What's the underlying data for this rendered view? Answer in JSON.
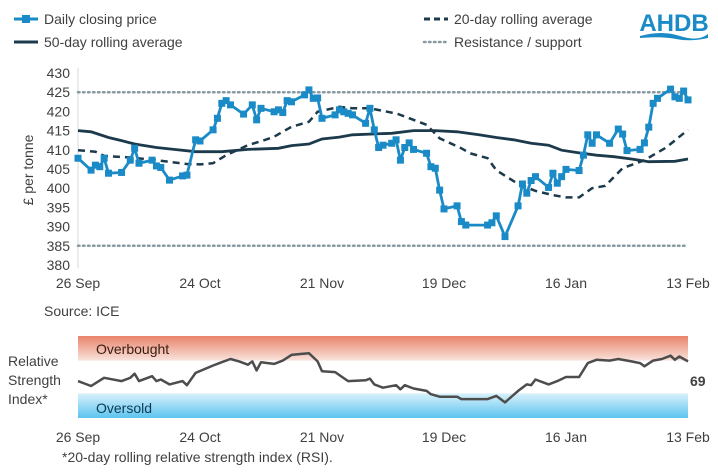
{
  "logo": {
    "text": "AHDB",
    "color": "#1a8bc6"
  },
  "colors": {
    "price": "#1a8bc6",
    "avg20": "#1c3a4c",
    "avg50": "#1c3a4c",
    "levels": "#8a9aa3",
    "overbought": "#e8836a",
    "oversold": "#5cc4ef",
    "rsi": "#4d4d4d"
  },
  "chart_data": [
    {
      "type": "line",
      "ylabel": "£ per tonne",
      "ylim": [
        380,
        430
      ],
      "yticks": [
        "430",
        "425",
        "420",
        "415",
        "410",
        "405",
        "400",
        "395",
        "390",
        "385",
        "380"
      ],
      "xticks": [
        "26 Sep",
        "24 Oct",
        "21 Nov",
        "19 Dec",
        "16 Jan",
        "13 Feb"
      ],
      "legend": "top",
      "source": "Source: ICE",
      "series": [
        {
          "name": "Daily closing price",
          "style": "line-square-markers",
          "points": [
            [
              "26 Sep",
              407.8
            ],
            [
              "29 Sep",
              404.7
            ],
            [
              "30 Sep",
              406.0
            ],
            [
              "1 Oct",
              405.6
            ],
            [
              "2 Oct",
              407.8
            ],
            [
              "3 Oct",
              403.9
            ],
            [
              "6 Oct",
              404.1
            ],
            [
              "8 Oct",
              407.3
            ],
            [
              "9 Oct",
              410.4
            ],
            [
              "10 Oct",
              406.5
            ],
            [
              "13 Oct",
              407.3
            ],
            [
              "14 Oct",
              405.8
            ],
            [
              "15 Oct",
              405.4
            ],
            [
              "17 Oct",
              402.1
            ],
            [
              "20 Oct",
              403.2
            ],
            [
              "21 Oct",
              403.4
            ],
            [
              "23 Oct",
              412.6
            ],
            [
              "24 Oct",
              412.3
            ],
            [
              "27 Oct",
              415.2
            ],
            [
              "28 Oct",
              418.2
            ],
            [
              "29 Oct",
              422.1
            ],
            [
              "30 Oct",
              422.8
            ],
            [
              "31 Oct",
              421.7
            ],
            [
              "3 Nov",
              419.3
            ],
            [
              "5 Nov",
              421.7
            ],
            [
              "6 Nov",
              417.8
            ],
            [
              "7 Nov",
              420.8
            ],
            [
              "10 Nov",
              419.9
            ],
            [
              "11 Nov",
              420.4
            ],
            [
              "12 Nov",
              419.7
            ],
            [
              "13 Nov",
              422.8
            ],
            [
              "14 Nov",
              422.5
            ],
            [
              "17 Nov",
              424.3
            ],
            [
              "18 Nov",
              425.6
            ],
            [
              "19 Nov",
              423.4
            ],
            [
              "20 Nov",
              423.5
            ],
            [
              "21 Nov",
              418.2
            ],
            [
              "24 Nov",
              419.1
            ],
            [
              "25 Nov",
              420.4
            ],
            [
              "26 Nov",
              419.9
            ],
            [
              "27 Nov",
              419.5
            ],
            [
              "28 Nov",
              419.1
            ],
            [
              "1 Dec",
              416.9
            ],
            [
              "2 Dec",
              420.8
            ],
            [
              "3 Dec",
              415.2
            ],
            [
              "4 Dec",
              410.6
            ],
            [
              "5 Dec",
              411.2
            ],
            [
              "7 Dec",
              411.7
            ],
            [
              "8 Dec",
              412.6
            ],
            [
              "9 Dec",
              407.3
            ],
            [
              "10 Dec",
              410.6
            ],
            [
              "11 Dec",
              411.8
            ],
            [
              "12 Dec",
              410.1
            ],
            [
              "15 Dec",
              409.1
            ],
            [
              "16 Dec",
              405.6
            ],
            [
              "17 Dec",
              405.2
            ],
            [
              "18 Dec",
              399.5
            ],
            [
              "19 Dec",
              394.6
            ],
            [
              "22 Dec",
              395.4
            ],
            [
              "23 Dec",
              391.3
            ],
            [
              "24 Dec",
              390.4
            ],
            [
              "29 Dec",
              390.4
            ],
            [
              "30 Dec",
              391.0
            ],
            [
              "31 Dec",
              392.8
            ],
            [
              "2 Jan",
              387.4
            ],
            [
              "5 Jan",
              395.4
            ],
            [
              "6 Jan",
              401.1
            ],
            [
              "7 Jan",
              398.7
            ],
            [
              "8 Jan",
              402.0
            ],
            [
              "9 Jan",
              403.0
            ],
            [
              "12 Jan",
              400.2
            ],
            [
              "13 Jan",
              403.9
            ],
            [
              "14 Jan",
              401.3
            ],
            [
              "15 Jan",
              403.0
            ],
            [
              "16 Jan",
              404.9
            ],
            [
              "19 Jan",
              404.6
            ],
            [
              "20 Jan",
              408.6
            ],
            [
              "21 Jan",
              413.9
            ],
            [
              "22 Jan",
              411.7
            ],
            [
              "23 Jan",
              413.9
            ],
            [
              "26 Jan",
              411.7
            ],
            [
              "28 Jan",
              415.4
            ],
            [
              "29 Jan",
              414.1
            ],
            [
              "30 Jan",
              409.8
            ],
            [
              "2 Feb",
              410.1
            ],
            [
              "3 Feb",
              411.8
            ],
            [
              "4 Feb",
              415.9
            ],
            [
              "5 Feb",
              422.1
            ],
            [
              "6 Feb",
              423.4
            ],
            [
              "9 Feb",
              425.8
            ],
            [
              "10 Feb",
              423.8
            ],
            [
              "11 Feb",
              423.4
            ],
            [
              "12 Feb",
              425.3
            ],
            [
              "13 Feb",
              423.0
            ]
          ]
        },
        {
          "name": "20-day rolling average",
          "style": "dashed",
          "points": [
            [
              "26 Sep",
              409.9
            ],
            [
              "30 Sep",
              409.5
            ],
            [
              "2 Oct",
              408.4
            ],
            [
              "8 Oct",
              408.0
            ],
            [
              "14 Oct",
              407.3
            ],
            [
              "21 Oct",
              406.3
            ],
            [
              "24 Oct",
              406.2
            ],
            [
              "27 Oct",
              406.5
            ],
            [
              "30 Oct",
              408.6
            ],
            [
              "4 Nov",
              411.2
            ],
            [
              "8 Nov",
              412.6
            ],
            [
              "10 Nov",
              413.4
            ],
            [
              "14 Nov",
              416.0
            ],
            [
              "18 Nov",
              417.3
            ],
            [
              "20 Nov",
              419.9
            ],
            [
              "25 Nov",
              421.2
            ],
            [
              "28 Nov",
              420.8
            ],
            [
              "2 Dec",
              420.8
            ],
            [
              "7 Dec",
              419.7
            ],
            [
              "8 Dec",
              419.5
            ],
            [
              "15 Dec",
              416.5
            ],
            [
              "18 Dec",
              413.0
            ],
            [
              "23 Dec",
              410.4
            ],
            [
              "25 Dec",
              409.1
            ],
            [
              "29 Dec",
              407.8
            ],
            [
              "31 Dec",
              404.7
            ],
            [
              "5 Jan",
              401.1
            ],
            [
              "9 Jan",
              399.3
            ],
            [
              "13 Jan",
              398.2
            ],
            [
              "16 Jan",
              397.6
            ],
            [
              "19 Jan",
              397.6
            ],
            [
              "22 Jan",
              400.0
            ],
            [
              "25 Jan",
              400.6
            ],
            [
              "29 Jan",
              405.2
            ],
            [
              "3 Feb",
              407.3
            ],
            [
              "8 Feb",
              410.6
            ],
            [
              "13 Feb",
              415.2
            ]
          ]
        },
        {
          "name": "50-day rolling average",
          "style": "solid",
          "points": [
            [
              "26 Sep",
              415.0
            ],
            [
              "29 Sep",
              414.7
            ],
            [
              "3 Oct",
              413.2
            ],
            [
              "6 Oct",
              412.4
            ],
            [
              "9 Oct",
              411.5
            ],
            [
              "14 Oct",
              410.6
            ],
            [
              "18 Oct",
              410.1
            ],
            [
              "23 Oct",
              409.5
            ],
            [
              "29 Oct",
              409.5
            ],
            [
              "4 Nov",
              410.1
            ],
            [
              "11 Nov",
              410.4
            ],
            [
              "14 Nov",
              411.1
            ],
            [
              "18 Nov",
              411.5
            ],
            [
              "21 Nov",
              412.8
            ],
            [
              "25 Nov",
              413.3
            ],
            [
              "28 Nov",
              413.9
            ],
            [
              "2 Dec",
              414.1
            ],
            [
              "7 Dec",
              414.3
            ],
            [
              "12 Dec",
              415.0
            ],
            [
              "17 Dec",
              415.0
            ],
            [
              "22 Dec",
              414.7
            ],
            [
              "27 Dec",
              413.9
            ],
            [
              "31 Dec",
              413.2
            ],
            [
              "4 Jan",
              412.6
            ],
            [
              "8 Jan",
              411.7
            ],
            [
              "12 Jan",
              411.2
            ],
            [
              "15 Jan",
              409.9
            ],
            [
              "19 Jan",
              409.2
            ],
            [
              "23 Jan",
              408.6
            ],
            [
              "27 Jan",
              408.2
            ],
            [
              "31 Jan",
              407.6
            ],
            [
              "4 Feb",
              406.9
            ],
            [
              "10 Feb",
              407.0
            ],
            [
              "13 Feb",
              407.6
            ]
          ]
        },
        {
          "name": "Resistance / support",
          "style": "dotted",
          "levels": [
            425,
            385
          ]
        }
      ]
    },
    {
      "type": "line",
      "ylabel": "Relative Strength Index*",
      "ylim": [
        0,
        100
      ],
      "xticks": [
        "26 Sep",
        "24 Oct",
        "21 Nov",
        "19 Dec",
        "16 Jan",
        "13 Feb"
      ],
      "bands": [
        {
          "label": "Overbought",
          "range": [
            70,
            100
          ]
        },
        {
          "label": "Oversold",
          "range": [
            0,
            30
          ]
        }
      ],
      "last_value_label": "69",
      "footnote": "*20-day rolling relative strength index (RSI).",
      "series": [
        {
          "points": [
            [
              "26 Sep",
              45
            ],
            [
              "29 Sep",
              39
            ],
            [
              "2 Oct",
              49
            ],
            [
              "6 Oct",
              45
            ],
            [
              "8 Oct",
              49
            ],
            [
              "9 Oct",
              54
            ],
            [
              "10 Oct",
              45
            ],
            [
              "13 Oct",
              51
            ],
            [
              "14 Oct",
              45
            ],
            [
              "15 Oct",
              47
            ],
            [
              "17 Oct",
              41
            ],
            [
              "20 Oct",
              45
            ],
            [
              "21 Oct",
              40
            ],
            [
              "23 Oct",
              55
            ],
            [
              "27 Oct",
              64
            ],
            [
              "29 Oct",
              68
            ],
            [
              "31 Oct",
              72
            ],
            [
              "2 Nov",
              69
            ],
            [
              "4 Nov",
              65
            ],
            [
              "5 Nov",
              69
            ],
            [
              "6 Nov",
              58
            ],
            [
              "7 Nov",
              68
            ],
            [
              "10 Nov",
              66
            ],
            [
              "12 Nov",
              70
            ],
            [
              "14 Nov",
              77
            ],
            [
              "16 Nov",
              78
            ],
            [
              "18 Nov",
              79
            ],
            [
              "20 Nov",
              69
            ],
            [
              "21 Nov",
              57
            ],
            [
              "24 Nov",
              56
            ],
            [
              "27 Nov",
              45
            ],
            [
              "1 Dec",
              46
            ],
            [
              "2 Dec",
              48
            ],
            [
              "3 Dec",
              41
            ],
            [
              "5 Dec",
              37
            ],
            [
              "8 Dec",
              40
            ],
            [
              "9 Dec",
              35
            ],
            [
              "10 Dec",
              40
            ],
            [
              "12 Dec",
              36
            ],
            [
              "15 Dec",
              33
            ],
            [
              "16 Dec",
              29
            ],
            [
              "18 Dec",
              26
            ],
            [
              "22 Dec",
              26
            ],
            [
              "23 Dec",
              23
            ],
            [
              "29 Dec",
              23
            ],
            [
              "31 Dec",
              27
            ],
            [
              "2 Jan",
              19
            ],
            [
              "5 Jan",
              33
            ],
            [
              "7 Jan",
              41
            ],
            [
              "8 Jan",
              40
            ],
            [
              "9 Jan",
              47
            ],
            [
              "12 Jan",
              41
            ],
            [
              "14 Jan",
              45
            ],
            [
              "16 Jan",
              50
            ],
            [
              "19 Jan",
              50
            ],
            [
              "21 Jan",
              67
            ],
            [
              "23 Jan",
              71
            ],
            [
              "26 Jan",
              70
            ],
            [
              "28 Jan",
              72
            ],
            [
              "31 Jan",
              69
            ],
            [
              "2 Feb",
              67
            ],
            [
              "3 Feb",
              63
            ],
            [
              "5 Feb",
              70
            ],
            [
              "7 Feb",
              72
            ],
            [
              "9 Feb",
              76
            ],
            [
              "10 Feb",
              71
            ],
            [
              "11 Feb",
              75
            ],
            [
              "13 Feb",
              69
            ]
          ]
        }
      ]
    }
  ]
}
